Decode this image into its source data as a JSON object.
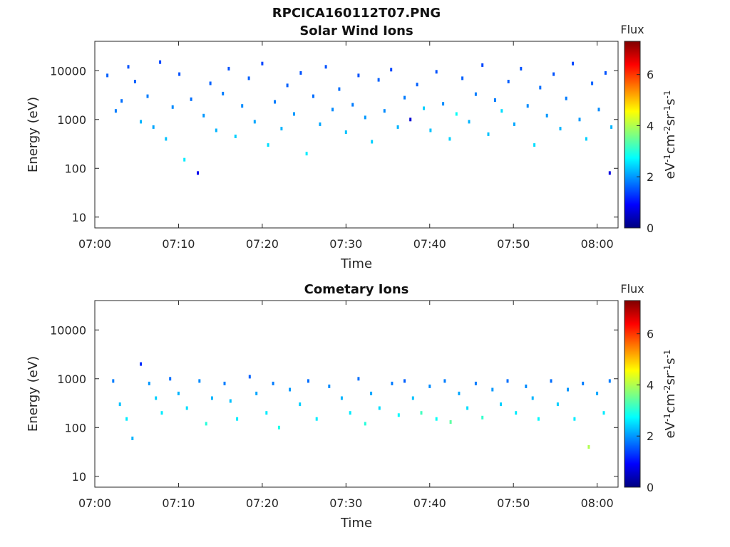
{
  "figure": {
    "title": "RPCICA160112T07.PNG"
  },
  "chart_data": [
    {
      "type": "heatmap",
      "title": "Solar Wind Ions",
      "xlabel": "Time",
      "ylabel": "Energy (eV)",
      "x_ticks": [
        "07:00",
        "07:10",
        "07:20",
        "07:30",
        "07:40",
        "07:50",
        "08:00"
      ],
      "y_ticks": [
        "10",
        "100",
        "1000",
        "10000"
      ],
      "y_tick_values": [
        10,
        100,
        1000,
        10000
      ],
      "y_scale": "log",
      "ylim": [
        6,
        40000
      ],
      "colorbar": {
        "label": "Flux",
        "unit": "eV-1cm-2sr-1s-1",
        "ticks": [
          "0",
          "2",
          "4",
          "6"
        ],
        "range": [
          0,
          7.3
        ]
      },
      "points": [
        [
          1.5,
          8000,
          1.6
        ],
        [
          2.5,
          1500,
          1.8
        ],
        [
          3.2,
          2400,
          1.7
        ],
        [
          4.0,
          12000,
          1.5
        ],
        [
          4.8,
          6000,
          1.6
        ],
        [
          5.5,
          900,
          2.2
        ],
        [
          6.3,
          3000,
          1.8
        ],
        [
          7.0,
          700,
          2.1
        ],
        [
          7.8,
          15000,
          1.4
        ],
        [
          8.5,
          400,
          2.3
        ],
        [
          9.3,
          1800,
          1.9
        ],
        [
          10.1,
          8500,
          1.5
        ],
        [
          10.7,
          150,
          2.6
        ],
        [
          11.5,
          2600,
          1.7
        ],
        [
          12.3,
          80,
          0.8
        ],
        [
          13.0,
          1200,
          2.0
        ],
        [
          13.8,
          5500,
          1.6
        ],
        [
          14.5,
          600,
          2.2
        ],
        [
          15.3,
          3400,
          1.8
        ],
        [
          16.0,
          11000,
          1.5
        ],
        [
          16.8,
          450,
          2.4
        ],
        [
          17.6,
          1900,
          1.9
        ],
        [
          18.4,
          7000,
          1.6
        ],
        [
          19.1,
          900,
          2.1
        ],
        [
          20.0,
          14000,
          1.4
        ],
        [
          20.7,
          300,
          2.5
        ],
        [
          21.5,
          2300,
          1.8
        ],
        [
          22.3,
          650,
          2.2
        ],
        [
          23.0,
          5000,
          1.6
        ],
        [
          23.8,
          1300,
          2.0
        ],
        [
          24.6,
          9000,
          1.5
        ],
        [
          25.3,
          200,
          2.6
        ],
        [
          26.1,
          3000,
          1.7
        ],
        [
          26.9,
          800,
          2.1
        ],
        [
          27.6,
          12000,
          1.5
        ],
        [
          28.4,
          1600,
          1.9
        ],
        [
          29.2,
          4200,
          1.7
        ],
        [
          30.0,
          550,
          2.3
        ],
        [
          30.8,
          2000,
          1.8
        ],
        [
          31.5,
          8000,
          1.5
        ],
        [
          32.3,
          1100,
          2.0
        ],
        [
          33.1,
          350,
          2.4
        ],
        [
          33.9,
          6500,
          1.6
        ],
        [
          34.6,
          1500,
          1.9
        ],
        [
          35.4,
          10500,
          1.4
        ],
        [
          36.2,
          700,
          2.2
        ],
        [
          37.0,
          2800,
          1.8
        ],
        [
          37.7,
          1000,
          0.6
        ],
        [
          38.5,
          5200,
          1.6
        ],
        [
          39.3,
          1700,
          2.4
        ],
        [
          40.1,
          600,
          2.3
        ],
        [
          40.8,
          9500,
          1.5
        ],
        [
          41.6,
          2100,
          1.9
        ],
        [
          42.4,
          400,
          2.4
        ],
        [
          43.2,
          1300,
          2.8
        ],
        [
          43.9,
          7000,
          1.6
        ],
        [
          44.7,
          900,
          2.2
        ],
        [
          45.5,
          3300,
          1.8
        ],
        [
          46.3,
          13000,
          1.4
        ],
        [
          47.0,
          500,
          2.3
        ],
        [
          47.8,
          2500,
          1.8
        ],
        [
          48.6,
          1500,
          2.5
        ],
        [
          49.4,
          6000,
          1.6
        ],
        [
          50.1,
          800,
          2.1
        ],
        [
          50.9,
          11000,
          1.5
        ],
        [
          51.7,
          1900,
          1.9
        ],
        [
          52.5,
          300,
          2.5
        ],
        [
          53.2,
          4500,
          1.7
        ],
        [
          54.0,
          1200,
          2.0
        ],
        [
          54.8,
          8500,
          1.5
        ],
        [
          55.6,
          650,
          2.2
        ],
        [
          56.3,
          2700,
          1.8
        ],
        [
          57.1,
          14000,
          1.4
        ],
        [
          57.9,
          1000,
          2.0
        ],
        [
          58.7,
          400,
          2.4
        ],
        [
          59.4,
          5500,
          1.6
        ],
        [
          60.2,
          1600,
          1.9
        ],
        [
          61.0,
          9000,
          1.5
        ],
        [
          61.5,
          80,
          0.7
        ],
        [
          61.7,
          700,
          2.2
        ]
      ]
    },
    {
      "type": "heatmap",
      "title": "Cometary Ions",
      "xlabel": "Time",
      "ylabel": "Energy (eV)",
      "x_ticks": [
        "07:00",
        "07:10",
        "07:20",
        "07:30",
        "07:40",
        "07:50",
        "08:00"
      ],
      "y_ticks": [
        "10",
        "100",
        "1000",
        "10000"
      ],
      "y_tick_values": [
        10,
        100,
        1000,
        10000
      ],
      "y_scale": "log",
      "ylim": [
        6,
        40000
      ],
      "colorbar": {
        "label": "Flux",
        "unit": "eV-1cm-2sr-1s-1",
        "ticks": [
          "0",
          "2",
          "4",
          "6"
        ],
        "range": [
          0,
          7.3
        ]
      },
      "points": [
        [
          2.2,
          900,
          1.8
        ],
        [
          3.0,
          300,
          2.3
        ],
        [
          3.8,
          150,
          2.6
        ],
        [
          4.5,
          60,
          2.2
        ],
        [
          5.5,
          2000,
          1.2
        ],
        [
          6.5,
          800,
          2.0
        ],
        [
          7.3,
          400,
          2.4
        ],
        [
          8.0,
          200,
          2.6
        ],
        [
          9.0,
          1000,
          1.7
        ],
        [
          10.0,
          500,
          2.2
        ],
        [
          11.0,
          250,
          2.5
        ],
        [
          12.5,
          900,
          1.9
        ],
        [
          13.3,
          120,
          3.0
        ],
        [
          14.0,
          400,
          2.2
        ],
        [
          15.5,
          800,
          1.8
        ],
        [
          16.2,
          350,
          2.3
        ],
        [
          17.0,
          150,
          2.6
        ],
        [
          18.5,
          1100,
          1.6
        ],
        [
          19.3,
          500,
          2.1
        ],
        [
          20.5,
          200,
          2.6
        ],
        [
          21.3,
          800,
          1.8
        ],
        [
          22.0,
          100,
          2.9
        ],
        [
          23.3,
          600,
          2.0
        ],
        [
          24.5,
          300,
          2.4
        ],
        [
          25.5,
          900,
          1.7
        ],
        [
          26.5,
          150,
          2.6
        ],
        [
          28.0,
          700,
          1.9
        ],
        [
          29.5,
          400,
          2.2
        ],
        [
          30.5,
          200,
          2.6
        ],
        [
          31.5,
          1000,
          1.7
        ],
        [
          32.3,
          120,
          3.0
        ],
        [
          33.0,
          500,
          2.1
        ],
        [
          34.0,
          250,
          2.5
        ],
        [
          35.5,
          800,
          1.8
        ],
        [
          36.3,
          180,
          2.7
        ],
        [
          37.0,
          900,
          1.6
        ],
        [
          38.0,
          400,
          2.3
        ],
        [
          39.0,
          200,
          3.2
        ],
        [
          40.0,
          700,
          1.9
        ],
        [
          40.8,
          150,
          2.8
        ],
        [
          41.8,
          900,
          1.8
        ],
        [
          42.5,
          130,
          3.4
        ],
        [
          43.5,
          500,
          2.1
        ],
        [
          44.5,
          250,
          2.5
        ],
        [
          45.5,
          800,
          1.8
        ],
        [
          46.3,
          160,
          3.1
        ],
        [
          47.5,
          600,
          2.0
        ],
        [
          48.5,
          300,
          2.4
        ],
        [
          49.3,
          900,
          1.7
        ],
        [
          50.3,
          200,
          2.6
        ],
        [
          51.5,
          700,
          1.9
        ],
        [
          52.3,
          400,
          2.2
        ],
        [
          53.0,
          150,
          2.7
        ],
        [
          54.5,
          900,
          1.7
        ],
        [
          55.3,
          300,
          2.4
        ],
        [
          56.5,
          600,
          2.0
        ],
        [
          57.3,
          150,
          2.6
        ],
        [
          58.3,
          800,
          1.8
        ],
        [
          59.0,
          40,
          4.0
        ],
        [
          60.0,
          500,
          2.1
        ],
        [
          60.8,
          200,
          2.6
        ],
        [
          61.5,
          900,
          1.8
        ]
      ]
    }
  ]
}
